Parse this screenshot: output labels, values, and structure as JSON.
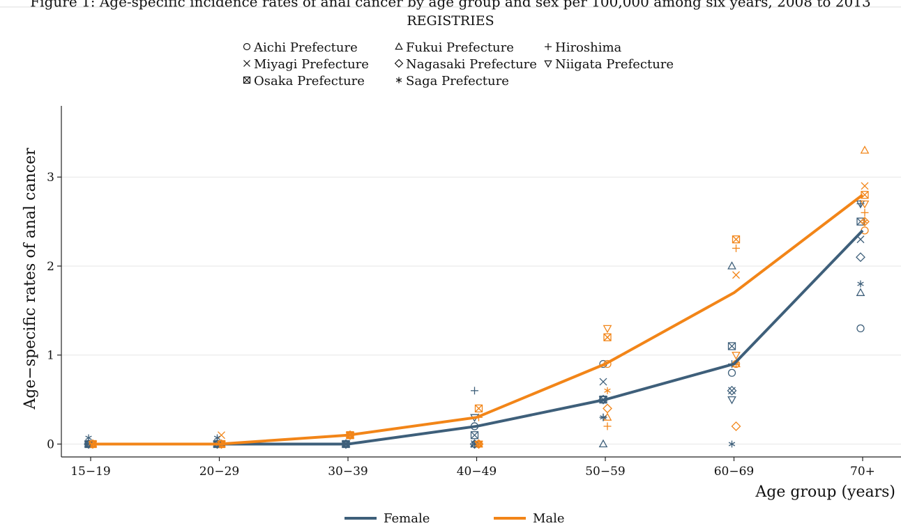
{
  "chart_data": {
    "type": "scatter",
    "title": "Figure 1: Age-specific incidence rates of anal cancer by age group and sex per 100,000 among six years, 2008 to 2013",
    "legend_top_title": "REGISTRIES",
    "xlabel": "Age group (years)",
    "ylabel": "Age−specific rates of anal cancer",
    "categories": [
      "15−19",
      "20−29",
      "30−39",
      "40−49",
      "50−59",
      "60−69",
      "70+"
    ],
    "ylim": [
      -0.15,
      3.8
    ],
    "yticks": [
      0,
      1,
      2,
      3
    ],
    "grid": true,
    "legend_top_placement": "top-center",
    "legend_bottom_placement": "bottom-center",
    "colors": {
      "female": "#3e5f7a",
      "male": "#f28518"
    },
    "lines": [
      {
        "name": "Female",
        "color": "#3e5f7a",
        "values": [
          0,
          0,
          0,
          0.2,
          0.5,
          0.9,
          2.4
        ]
      },
      {
        "name": "Male",
        "color": "#f28518",
        "values": [
          0,
          0,
          0.1,
          0.3,
          0.9,
          1.7,
          2.8
        ]
      }
    ],
    "registries": [
      {
        "name": "Aichi Prefecture",
        "marker": "circle",
        "symbol": "○",
        "female": [
          0,
          0,
          0,
          0.2,
          0.9,
          0.8,
          1.3
        ],
        "male": [
          0,
          0,
          0.1,
          0,
          0.9,
          0.9,
          2.4
        ]
      },
      {
        "name": "Miyagi Prefecture",
        "marker": "x",
        "symbol": "×",
        "female": [
          0,
          0,
          0,
          0,
          0.7,
          0.6,
          2.3
        ],
        "male": [
          0,
          0.1,
          0.1,
          0,
          1.2,
          1.9,
          2.9
        ]
      },
      {
        "name": "Osaka Prefecture",
        "marker": "boxed-x",
        "symbol": "⊠",
        "female": [
          0,
          0,
          0,
          0.1,
          0.5,
          1.1,
          2.5
        ],
        "male": [
          0,
          0,
          0.1,
          0.4,
          1.2,
          2.3,
          2.8
        ]
      },
      {
        "name": "Fukui Prefecture",
        "marker": "triangle",
        "symbol": "△",
        "female": [
          0,
          0,
          0,
          0,
          0,
          2.0,
          1.7
        ],
        "male": [
          0,
          0,
          0.1,
          0,
          0.3,
          0.9,
          3.3
        ]
      },
      {
        "name": "Nagasaki Prefecture",
        "marker": "diamond",
        "symbol": "◇",
        "female": [
          0,
          0,
          0,
          0,
          0.5,
          0.6,
          2.1
        ],
        "male": [
          0,
          0,
          0.1,
          0,
          0.4,
          0.2,
          2.5
        ]
      },
      {
        "name": "Saga Prefecture",
        "marker": "asterisk",
        "symbol": "∗",
        "female": [
          0.07,
          0.07,
          0,
          0,
          0.3,
          0,
          1.8
        ],
        "male": [
          0,
          0,
          0.1,
          0,
          0.6,
          0.9,
          2.5
        ]
      },
      {
        "name": "Hiroshima",
        "marker": "plus",
        "symbol": "+",
        "female": [
          0,
          0,
          0,
          0.6,
          0.3,
          0.9,
          2.7
        ],
        "male": [
          0,
          0,
          0.1,
          0.3,
          0.2,
          2.2,
          2.6
        ]
      },
      {
        "name": "Niigata Prefecture",
        "marker": "triangle-down",
        "symbol": "▽",
        "female": [
          0,
          0,
          0,
          0.3,
          0.5,
          0.5,
          2.7
        ],
        "male": [
          0,
          0,
          0.1,
          0,
          1.3,
          1.0,
          2.7
        ]
      }
    ]
  }
}
